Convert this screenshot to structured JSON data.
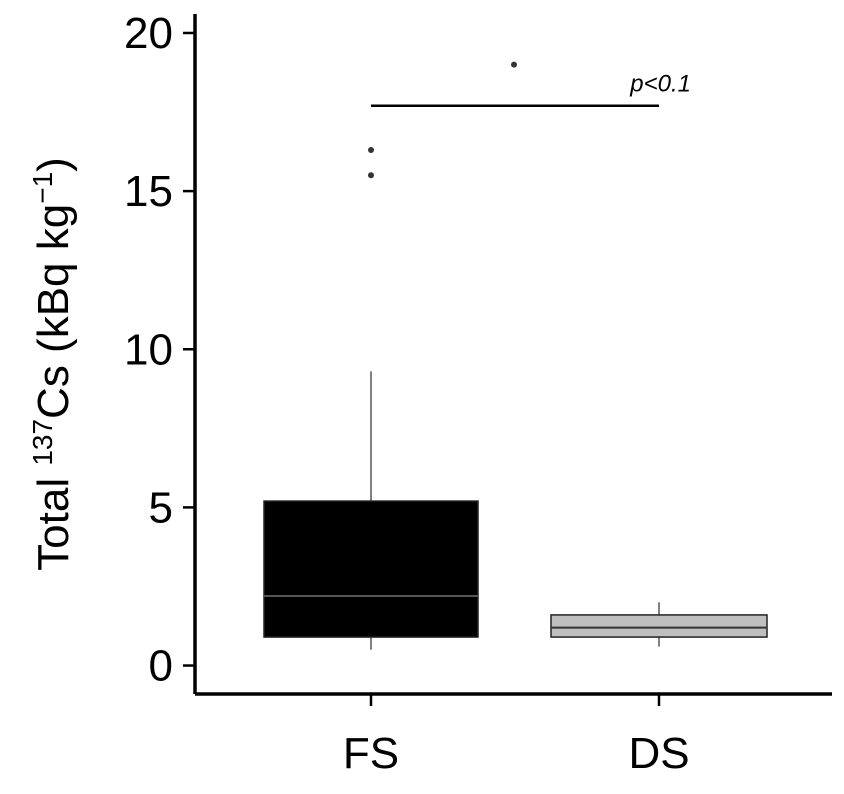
{
  "chart_data": {
    "type": "box",
    "categories": [
      "FS",
      "DS"
    ],
    "boxes": [
      {
        "category": "FS",
        "lower_whisker": 0.5,
        "q1": 0.9,
        "median": 2.2,
        "q3": 5.2,
        "upper_whisker": 9.3,
        "outliers": [
          15.5,
          16.3,
          19.0
        ],
        "fill": "#000000",
        "median_color": "#555555"
      },
      {
        "category": "DS",
        "lower_whisker": 0.6,
        "q1": 0.9,
        "median": 1.2,
        "q3": 1.6,
        "upper_whisker": 2.0,
        "outliers": [],
        "fill": "#bfbfbf",
        "median_color": "#333333"
      }
    ],
    "ylabel": {
      "prefix": "Total ",
      "superscript": "137",
      "main": "Cs (kBq kg",
      "unit_exp": "−1",
      "suffix": ")"
    },
    "ylim": [
      -0.9,
      20.6
    ],
    "yticks": [
      "0",
      "5",
      "10",
      "15",
      "20"
    ],
    "annotation": {
      "text": "p<0.1",
      "value": 17.7,
      "between": [
        "FS",
        "DS"
      ]
    },
    "grid": false,
    "legend": "none"
  }
}
